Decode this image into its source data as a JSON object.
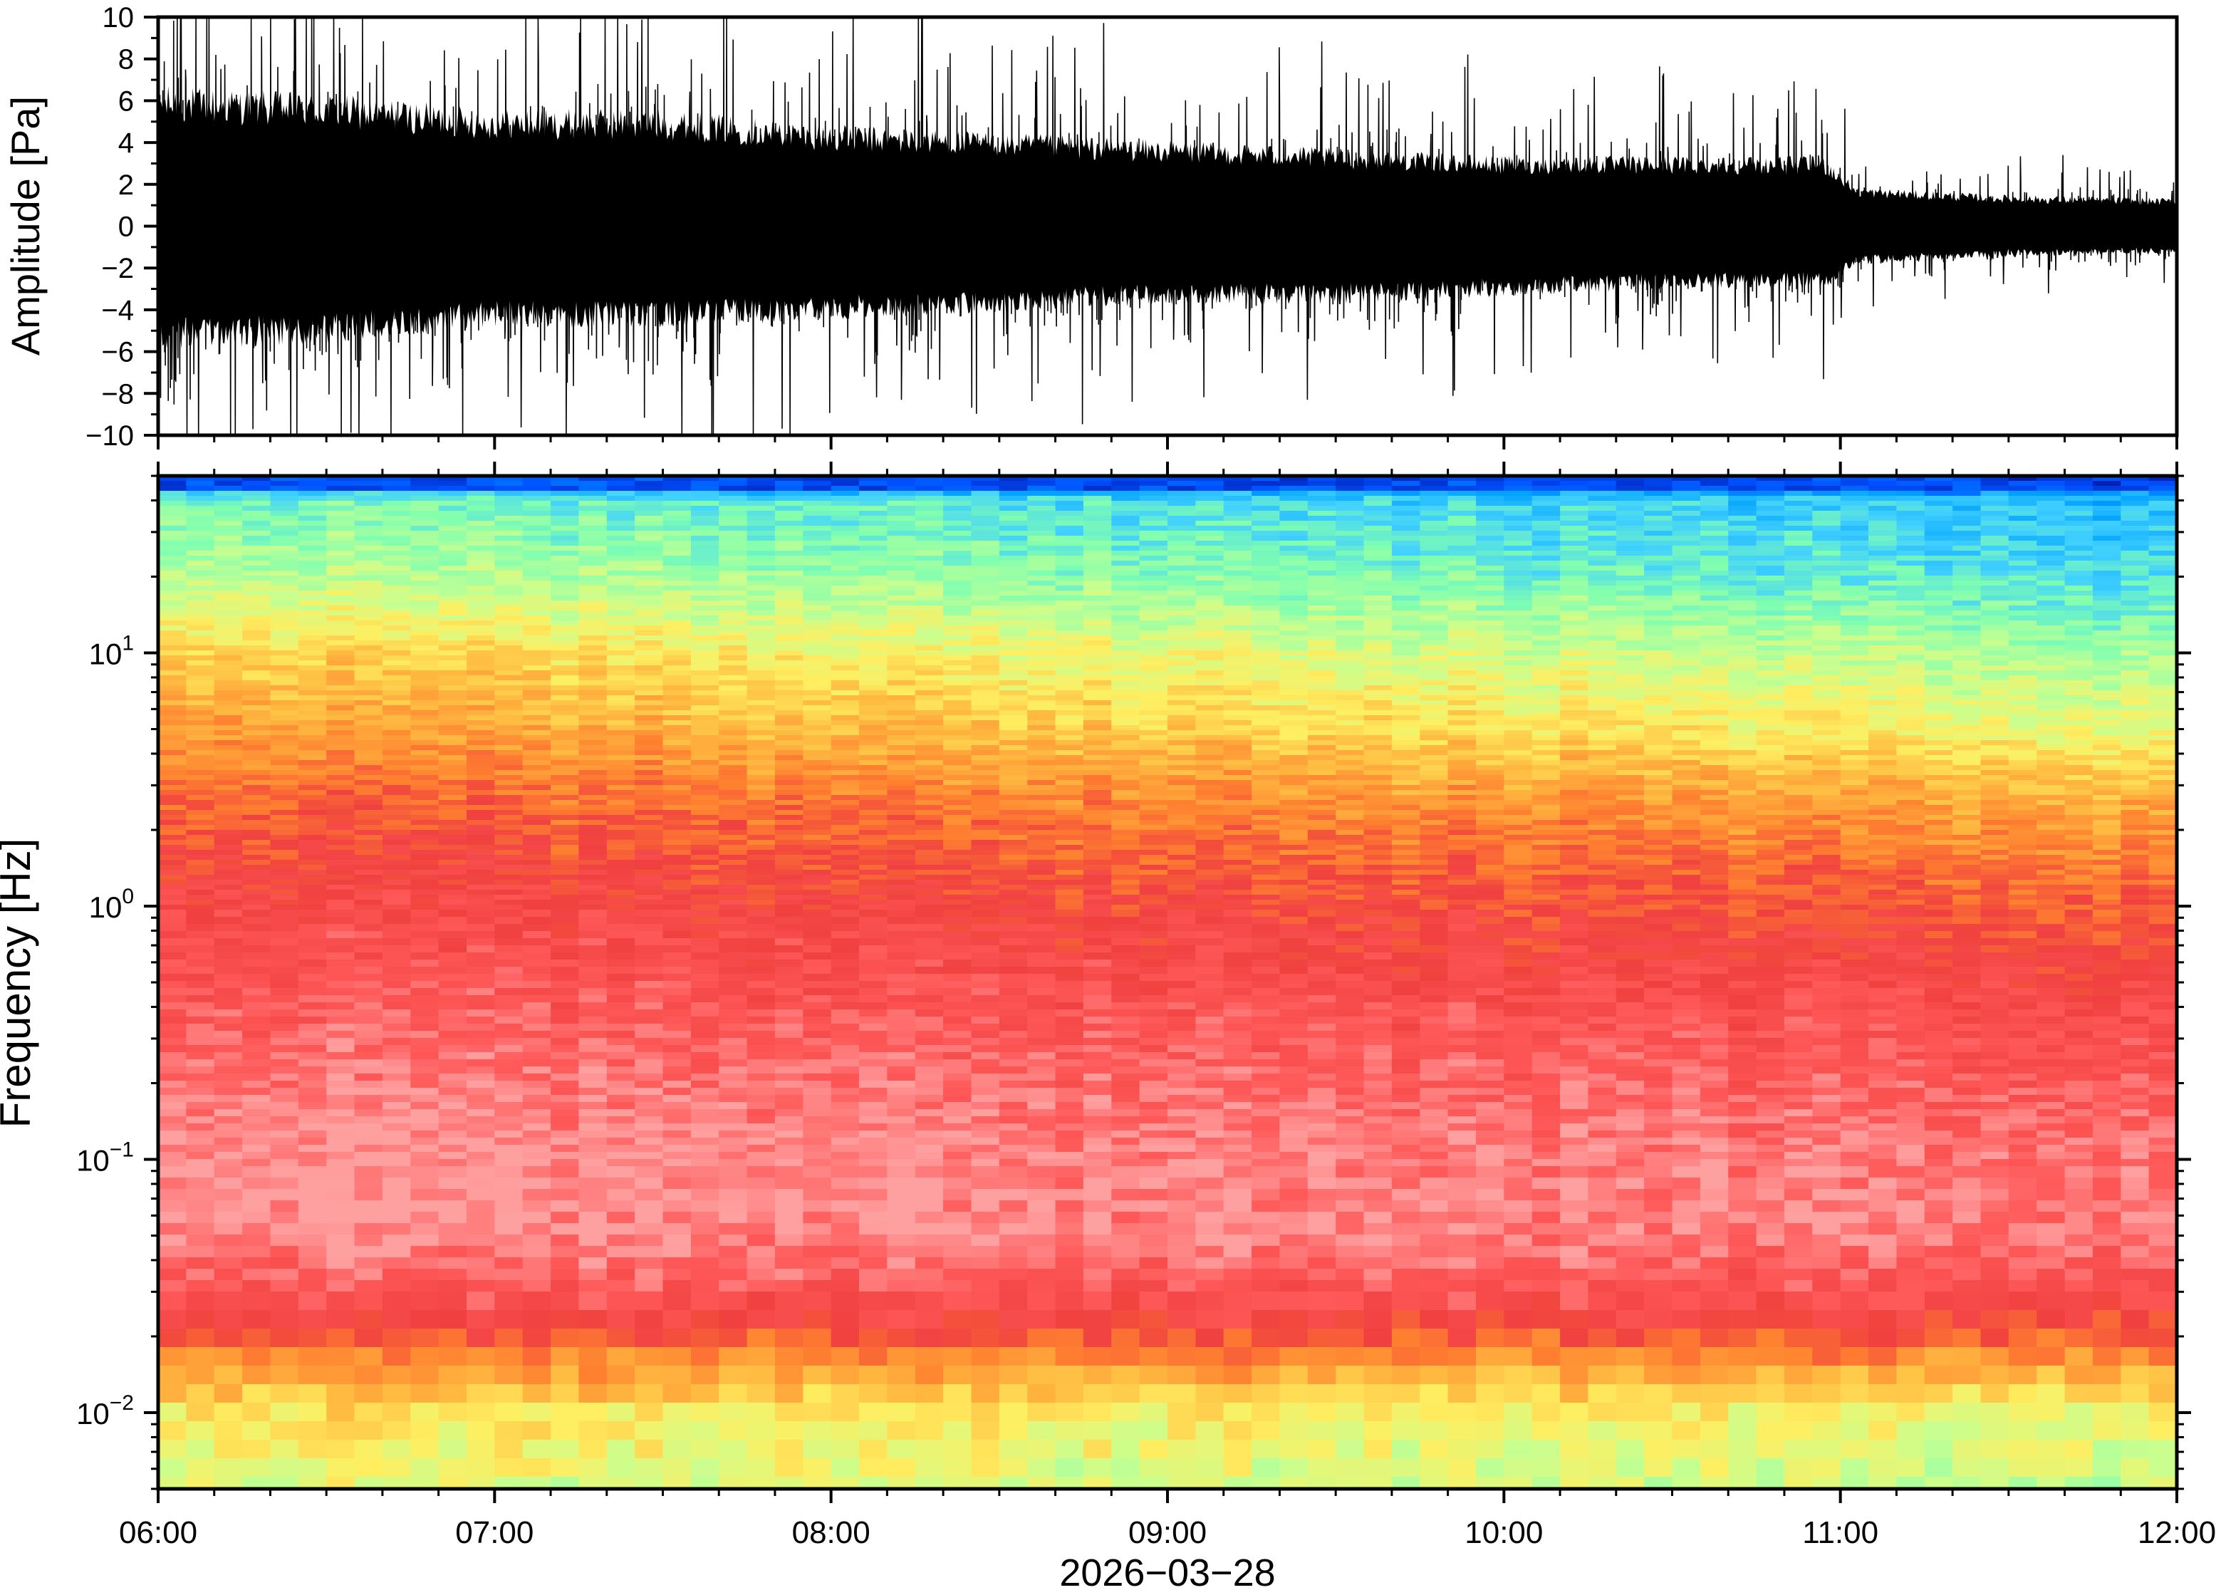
{
  "chart_data": [
    {
      "type": "line",
      "panel": "waveform",
      "ylabel": "Amplitude [Pa]",
      "ylim": [
        -10,
        10
      ],
      "y_ticks": [
        10,
        8,
        6,
        4,
        2,
        0,
        -2,
        -4,
        -6,
        -8,
        -10
      ],
      "y_tick_labels": [
        "10",
        "8",
        "6",
        "4",
        "2",
        "0",
        "−2",
        "−4",
        "−6",
        "−8",
        "−10"
      ],
      "x_range": [
        "06:00",
        "12:00"
      ],
      "envelope": {
        "hours": [
          6.0,
          6.5,
          7.0,
          7.5,
          8.0,
          8.5,
          9.0,
          9.5,
          10.0,
          10.5,
          10.95,
          11.05,
          11.5,
          12.0
        ],
        "upper": [
          9.0,
          8.5,
          7.5,
          7.5,
          6.5,
          6.0,
          5.5,
          5.0,
          4.5,
          4.5,
          4.5,
          2.5,
          2.0,
          1.8
        ],
        "lower": [
          -8.0,
          -7.5,
          -6.5,
          -6.5,
          -6.0,
          -5.5,
          -5.0,
          -5.0,
          -4.5,
          -4.0,
          -4.0,
          -2.5,
          -2.0,
          -1.8
        ]
      },
      "color": "#000000"
    },
    {
      "type": "heatmap",
      "panel": "spectrogram",
      "ylabel": "Frequency [Hz]",
      "yscale": "log",
      "ylim": [
        0.005,
        50
      ],
      "y_ticks": [
        0.01,
        0.1,
        1,
        10
      ],
      "y_tick_labels": [
        {
          "base": "10",
          "exp": "−2"
        },
        {
          "base": "10",
          "exp": "−1"
        },
        {
          "base": "10",
          "exp": "0"
        },
        {
          "base": "10",
          "exp": "1"
        }
      ],
      "x_ticks": [
        "06:00",
        "07:00",
        "08:00",
        "09:00",
        "10:00",
        "11:00",
        "12:00"
      ],
      "xlabel": "2026−03−28",
      "colormap": [
        "#00007f",
        "#0050ff",
        "#00a0ff",
        "#40d0ff",
        "#80ffb0",
        "#c8ff90",
        "#ffee60",
        "#ffb840",
        "#ff8030",
        "#f04040",
        "#ff5858",
        "#ffa0a0"
      ],
      "intensity_profile": {
        "log10_freq": [
          -2.3,
          -2.0,
          -1.8,
          -1.6,
          -1.3,
          -1.0,
          -0.5,
          0.0,
          0.4,
          0.7,
          1.0,
          1.3,
          1.6,
          1.68
        ],
        "level_start": [
          5.5,
          6.2,
          7.8,
          9.6,
          10.8,
          11.0,
          10.2,
          9.5,
          8.6,
          7.6,
          6.6,
          5.0,
          4.0,
          1.5
        ],
        "level_end": [
          5.0,
          5.8,
          7.6,
          9.3,
          10.5,
          10.4,
          9.7,
          8.6,
          7.3,
          5.6,
          4.6,
          3.3,
          2.6,
          0.8
        ]
      }
    }
  ]
}
